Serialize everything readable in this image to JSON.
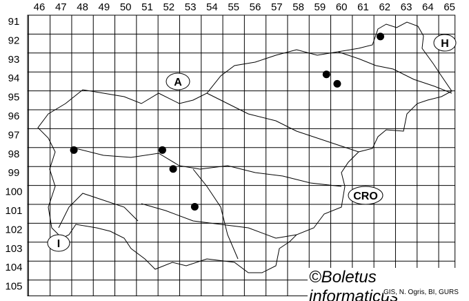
{
  "map": {
    "column_labels": [
      "46",
      "47",
      "48",
      "49",
      "50",
      "51",
      "52",
      "53",
      "54",
      "55",
      "56",
      "57",
      "58",
      "59",
      "60",
      "61",
      "62",
      "63",
      "64",
      "65"
    ],
    "row_labels": [
      "91",
      "92",
      "93",
      "94",
      "95",
      "96",
      "97",
      "98",
      "99",
      "100",
      "101",
      "102",
      "103",
      "104",
      "105"
    ],
    "country_labels": {
      "austria": "A",
      "hungary": "H",
      "croatia": "CRO",
      "italy": "I"
    },
    "records": [
      {
        "col": 61.8,
        "row": 91.8
      },
      {
        "col": 59.3,
        "row": 93.8
      },
      {
        "col": 59.8,
        "row": 94.3
      },
      {
        "col": 47.6,
        "row": 97.8
      },
      {
        "col": 51.7,
        "row": 97.8
      },
      {
        "col": 52.2,
        "row": 98.8
      },
      {
        "col": 53.2,
        "row": 100.8
      }
    ],
    "credit": "©Boletus informaticus",
    "source": "GIS, N. Ogris, BI, GURS"
  }
}
